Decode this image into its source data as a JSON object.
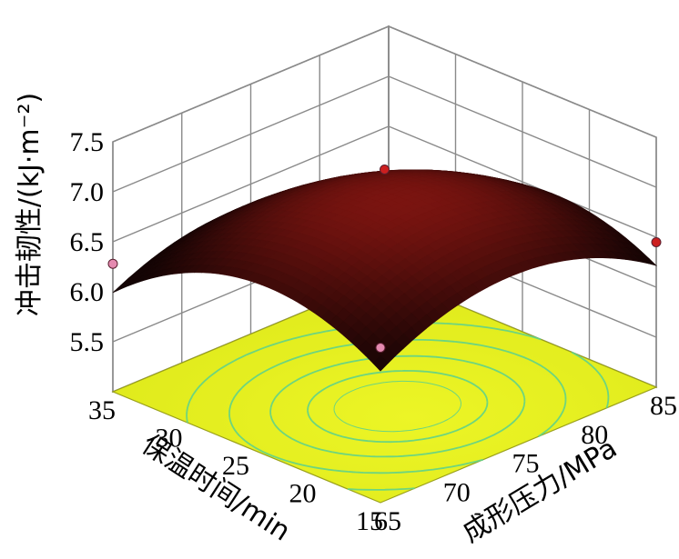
{
  "chart_data": {
    "type": "surface",
    "title": "",
    "zlabel": "冲击韧性/(kJ·m⁻²)",
    "xlabel": "成形压力/MPa",
    "ylabel": "保温时间/min",
    "x_ticks": [
      "65",
      "70",
      "75",
      "80",
      "85"
    ],
    "y_ticks": [
      "15",
      "20",
      "25",
      "30",
      "35"
    ],
    "z_ticks": [
      "5.5",
      "6.0",
      "6.5",
      "7.0",
      "7.5"
    ],
    "xlim": [
      65,
      85
    ],
    "ylim": [
      15,
      35
    ],
    "zlim": [
      5.0,
      7.5
    ],
    "surface_model": {
      "intercept": 7.05,
      "x_center": 74,
      "y_center": 23,
      "x_quad": -0.0045,
      "y_quad": -0.0052,
      "xy": -0.0005
    },
    "design_points": [
      {
        "x": 65,
        "y": 35,
        "z": 6.28,
        "color": "#e58ab0"
      },
      {
        "x": 65,
        "y": 15,
        "z": 6.55,
        "color": "#e58ab0"
      },
      {
        "x": 85,
        "y": 15,
        "z": 6.45,
        "color": "#cc1f1f"
      },
      {
        "x": 75,
        "y": 25,
        "z": 7.2,
        "color": "#cc1f1f"
      }
    ],
    "contour_floor_color": "#e6f01f",
    "contour_line_color": "#5fd28a",
    "surface_colors": {
      "peak": "#7a1410",
      "edge": "#140404"
    },
    "grid": true
  }
}
